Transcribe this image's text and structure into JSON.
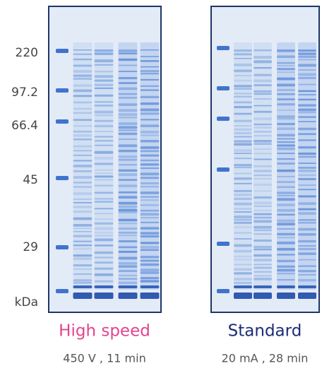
{
  "markers": [
    "220",
    "97.2",
    "66.4",
    "45",
    "29",
    "kDa"
  ],
  "gels": [
    {
      "title": "High speed",
      "condition": "450 V , 11 min"
    },
    {
      "title": "Standard",
      "condition": "20 mA , 28 min"
    }
  ]
}
